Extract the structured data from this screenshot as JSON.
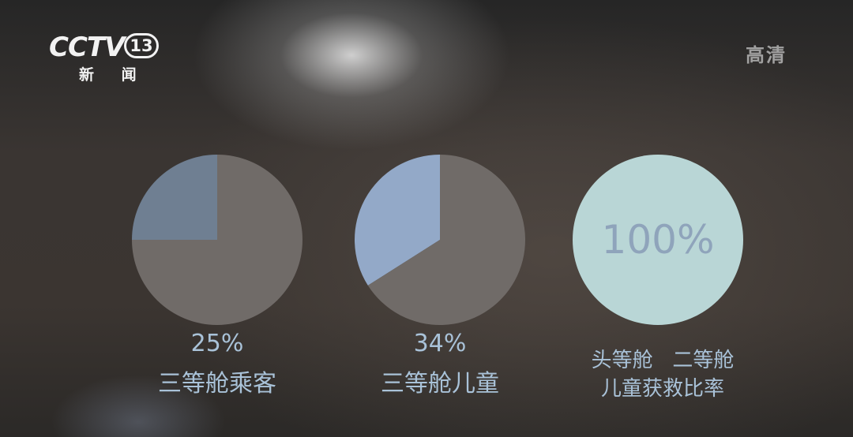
{
  "broadcast": {
    "channel_logo": "CCTV",
    "channel_number": "13",
    "channel_name": "新 闻",
    "quality_badge": "高清"
  },
  "colors": {
    "highlight_blue": "#93a9c8",
    "highlight_slate": "#6f7f92",
    "base_grey": "#706b68",
    "full_circle": "#b9d6d6",
    "text_blue": "#a9c2d8",
    "center_text": "#8fa4bb"
  },
  "chart_data": [
    {
      "type": "pie",
      "values": [
        25,
        75
      ],
      "percent_label": "25%",
      "caption": "三等舱乘客",
      "slice_colors": [
        "#6f7f92",
        "#706b68"
      ]
    },
    {
      "type": "pie",
      "values": [
        34,
        66
      ],
      "percent_label": "34%",
      "caption": "三等舱儿童",
      "slice_colors": [
        "#93a9c8",
        "#706b68"
      ]
    },
    {
      "type": "pie",
      "values": [
        100
      ],
      "center_label": "100%",
      "caption_line1": "头等舱   二等舱",
      "caption_line2": "儿童获救比率",
      "slice_colors": [
        "#b9d6d6"
      ]
    }
  ]
}
